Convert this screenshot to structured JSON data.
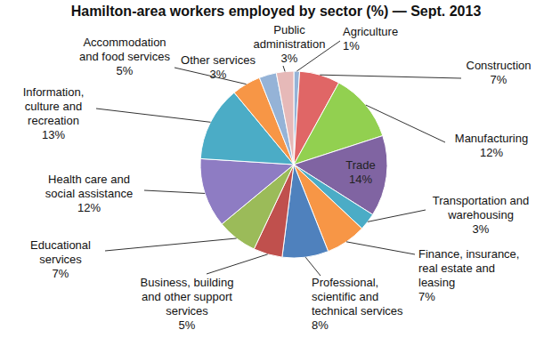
{
  "chart_data": {
    "type": "pie",
    "title": "Hamilton-area workers employed by sector (%) — Sept. 2013",
    "categories": [
      "Agriculture",
      "Construction",
      "Manufacturing",
      "Trade",
      "Transportation and warehousing",
      "Finance, insurance, real estate and leasing",
      "Professional, scientific and technical services",
      "Business, building and other support services",
      "Educational services",
      "Health care and social assistance",
      "Information, culture and recreation",
      "Accommodation and food services",
      "Other services",
      "Public administration"
    ],
    "values": [
      1,
      7,
      12,
      14,
      3,
      7,
      8,
      5,
      7,
      12,
      13,
      5,
      3,
      3
    ],
    "value_labels": [
      "1%",
      "7%",
      "12%",
      "14%",
      "3%",
      "7%",
      "8%",
      "5%",
      "7%",
      "12%",
      "13%",
      "5%",
      "3%",
      "3%"
    ],
    "colors": [
      "#95b3d7",
      "#e06666",
      "#92d050",
      "#8064a2",
      "#4bacc6",
      "#f79646",
      "#4f81bd",
      "#c0504d",
      "#9bbb59",
      "#8e7cc3",
      "#4bacc6",
      "#f79646",
      "#95b3d7",
      "#e6b9b8"
    ],
    "data_labels": true
  }
}
